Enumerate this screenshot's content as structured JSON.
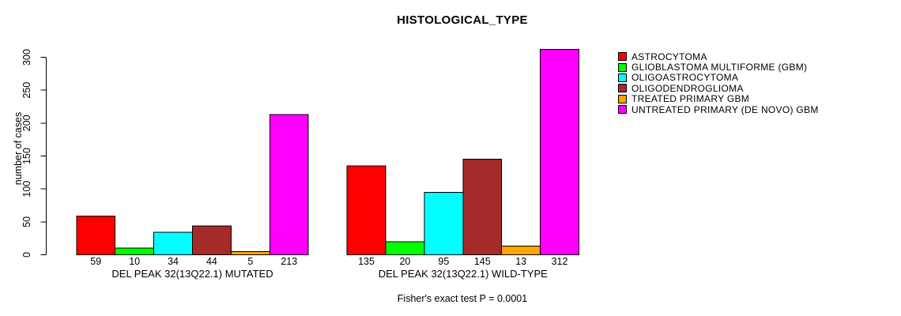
{
  "chart_data": {
    "type": "bar",
    "title": "HISTOLOGICAL_TYPE",
    "ylabel": "number of cases",
    "xlabel": "",
    "ylim": [
      0,
      300
    ],
    "yticks": [
      0,
      50,
      100,
      150,
      200,
      250,
      300
    ],
    "grid": false,
    "legend_position": "right",
    "bar_value_labels_shown": true,
    "categories": [
      "DEL PEAK 32(13Q22.1) MUTATED",
      "DEL PEAK 32(13Q22.1) WILD-TYPE"
    ],
    "series": [
      {
        "name": "ASTROCYTOMA",
        "color": "#FF0000",
        "values": [
          59,
          135
        ]
      },
      {
        "name": "GLIOBLASTOMA MULTIFORME (GBM)",
        "color": "#00FF00",
        "values": [
          10,
          20
        ]
      },
      {
        "name": "OLIGOASTROCYTOMA",
        "color": "#00FFFF",
        "values": [
          34,
          95
        ]
      },
      {
        "name": "OLIGODENDROGLIOMA",
        "color": "#A52A2A",
        "values": [
          44,
          145
        ]
      },
      {
        "name": "TREATED PRIMARY GBM",
        "color": "#FFA500",
        "values": [
          5,
          13
        ]
      },
      {
        "name": "UNTREATED PRIMARY (DE NOVO) GBM",
        "color": "#FF00FF",
        "values": [
          213,
          312
        ]
      }
    ],
    "footnote": "Fisher's exact test P = 0.0001",
    "colors": {
      "axis": "#000000",
      "text": "#000000",
      "background": "#FFFFFF",
      "bar_border": "#000000"
    }
  }
}
